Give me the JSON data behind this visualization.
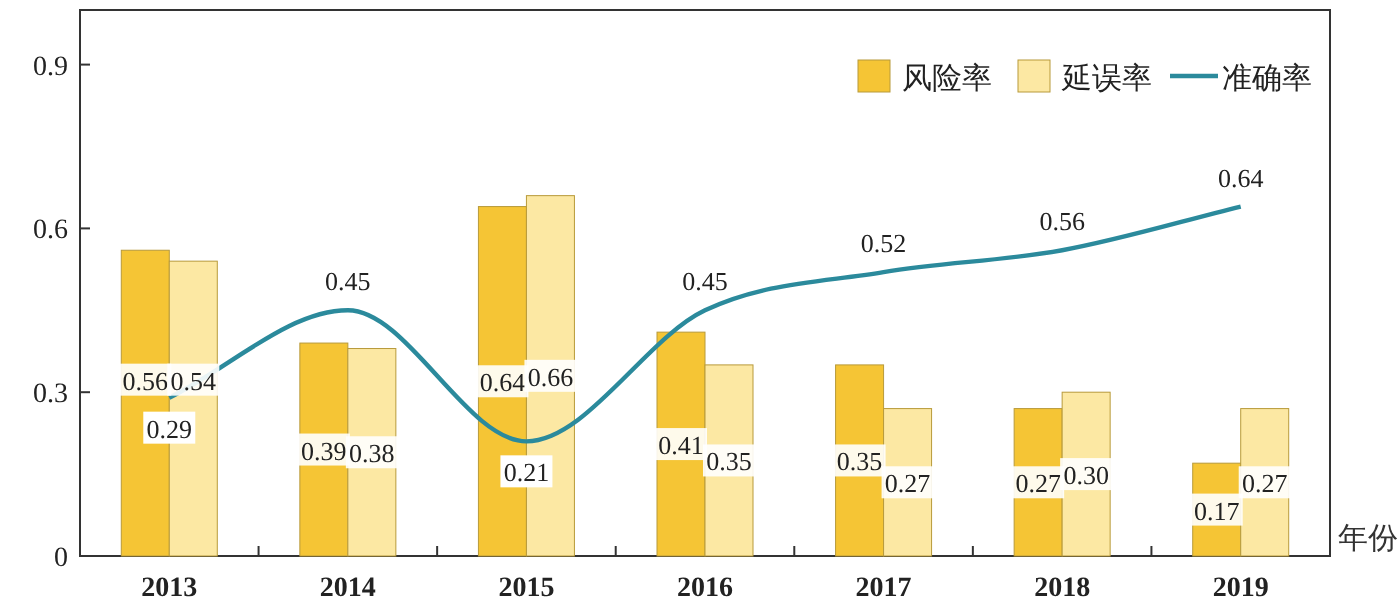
{
  "chart_data": {
    "type": "bar",
    "xlabel": "年份",
    "categories": [
      "2013",
      "2014",
      "2015",
      "2016",
      "2017",
      "2018",
      "2019"
    ],
    "series": [
      {
        "name": "风险率",
        "color": "#f5c535",
        "values": [
          0.56,
          0.39,
          0.64,
          0.41,
          0.35,
          0.27,
          0.17
        ]
      },
      {
        "name": "延误率",
        "color": "#fce8a3",
        "values": [
          0.54,
          0.38,
          0.66,
          0.35,
          0.27,
          0.3,
          0.27
        ],
        "value_labels": [
          "0.54",
          "0.38",
          "0.66",
          "0.35",
          "0.27",
          "0.30",
          "0.27"
        ]
      },
      {
        "name": "准确率",
        "type": "line",
        "color": "#2b8a9c",
        "values": [
          0.29,
          0.45,
          0.21,
          0.45,
          0.52,
          0.56,
          0.64
        ]
      }
    ],
    "ylim": [
      0,
      1
    ],
    "yticks": [
      0,
      0.3,
      0.6,
      0.9
    ],
    "data_labels": true,
    "legend": "top right",
    "grid": false
  }
}
